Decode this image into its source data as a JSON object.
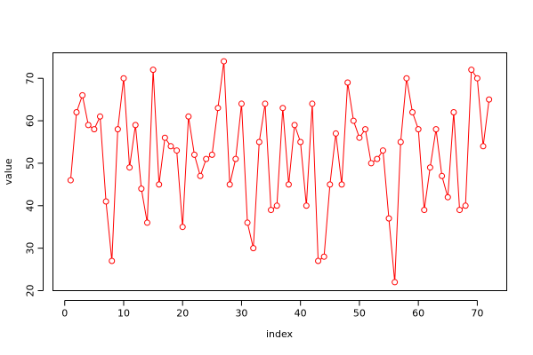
{
  "chart_data": {
    "type": "line",
    "title": "",
    "xlabel": "index",
    "ylabel": "value",
    "xlim": [
      -2,
      75
    ],
    "ylim": [
      20,
      76
    ],
    "xticks": [
      0,
      10,
      20,
      30,
      40,
      50,
      60,
      70
    ],
    "yticks": [
      20,
      30,
      40,
      50,
      60,
      70
    ],
    "grid": false,
    "legend": "none",
    "series": [
      {
        "color": "#ff0000",
        "markers": "open-circle",
        "x": [
          1,
          2,
          3,
          4,
          5,
          6,
          7,
          8,
          9,
          10,
          11,
          12,
          13,
          14,
          15,
          16,
          17,
          18,
          19,
          20,
          21,
          22,
          23,
          24,
          25,
          26,
          27,
          28,
          29,
          30,
          31,
          32,
          33,
          34,
          35,
          36,
          37,
          38,
          39,
          40,
          41,
          42,
          43,
          44,
          45,
          46,
          47,
          48,
          49,
          50,
          51,
          52,
          53,
          54,
          55,
          56,
          57,
          58,
          59,
          60,
          61,
          62,
          63,
          64,
          65,
          66,
          67,
          68,
          69,
          70,
          71,
          72
        ],
        "values": [
          46,
          62,
          66,
          59,
          58,
          61,
          41,
          27,
          58,
          70,
          49,
          59,
          44,
          36,
          72,
          45,
          56,
          54,
          53,
          35,
          61,
          52,
          47,
          51,
          52,
          63,
          74,
          45,
          51,
          64,
          36,
          30,
          55,
          64,
          39,
          40,
          63,
          45,
          59,
          55,
          40,
          64,
          27,
          28,
          45,
          57,
          45,
          69,
          60,
          56,
          58,
          50,
          51,
          53,
          37,
          22,
          55,
          70,
          62,
          58,
          39,
          49,
          58,
          47,
          42,
          62,
          39,
          40,
          72,
          70,
          54,
          65
        ]
      }
    ]
  }
}
